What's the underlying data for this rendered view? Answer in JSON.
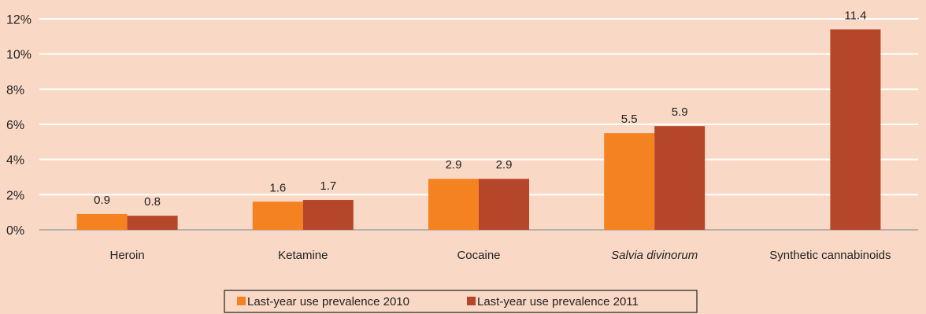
{
  "chart_data": {
    "type": "bar",
    "categories": [
      "Heroin",
      "Ketamine",
      "Cocaine",
      "Salvia divinorum",
      "Synthetic cannabinoids"
    ],
    "italic_categories": [
      "Salvia divinorum"
    ],
    "series": [
      {
        "name": "Last-year use prevalence 2010",
        "color": "#f58220",
        "values": [
          0.9,
          1.6,
          2.9,
          5.5,
          null
        ],
        "labels": [
          "0.9",
          "1.6",
          "2.9",
          "5.5",
          ""
        ]
      },
      {
        "name": "Last-year use prevalence 2011",
        "color": "#b5462a",
        "values": [
          0.8,
          1.7,
          2.9,
          5.9,
          11.4
        ],
        "labels": [
          "0.8",
          "1.7",
          "2.9",
          "5.9",
          "11.4"
        ]
      }
    ],
    "yticks": [
      0,
      2,
      4,
      6,
      8,
      10,
      12
    ],
    "ytick_labels": [
      "0%",
      "2%",
      "4%",
      "6%",
      "8%",
      "10%",
      "12%"
    ],
    "ylim": [
      0,
      12
    ],
    "grid": true,
    "legend_position": "bottom-center",
    "title": "",
    "xlabel": "",
    "ylabel": ""
  },
  "colors": {
    "background": "#f9d9c5",
    "gridline": "#ffffff",
    "axis": "#a0a0a0",
    "text": "#222222"
  }
}
